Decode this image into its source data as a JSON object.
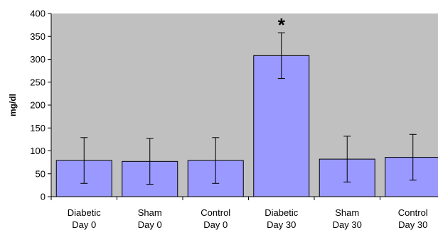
{
  "chart_data": {
    "type": "bar",
    "title": "",
    "xlabel": "",
    "ylabel": "mg/dl",
    "ylim": [
      0,
      400
    ],
    "yticks": [
      0,
      50,
      100,
      150,
      200,
      250,
      300,
      350,
      400
    ],
    "grid": false,
    "legend": "none",
    "categories": [
      [
        "Diabetic",
        "Day 0"
      ],
      [
        "Sham",
        "Day 0"
      ],
      [
        "Control",
        "Day 0"
      ],
      [
        "Diabetic",
        "Day 30"
      ],
      [
        "Sham",
        "Day 30"
      ],
      [
        "Control",
        "Day 30"
      ]
    ],
    "values": [
      79,
      77,
      79,
      308,
      82,
      86
    ],
    "error": [
      50,
      50,
      50,
      50,
      50,
      50
    ],
    "annotations": [
      {
        "category_index": 3,
        "text": "*"
      }
    ]
  },
  "colors": {
    "plot_background": "#c0c0c0",
    "bar_fill": "#9999ff",
    "bar_stroke": "#000000",
    "axis": "#000000"
  }
}
